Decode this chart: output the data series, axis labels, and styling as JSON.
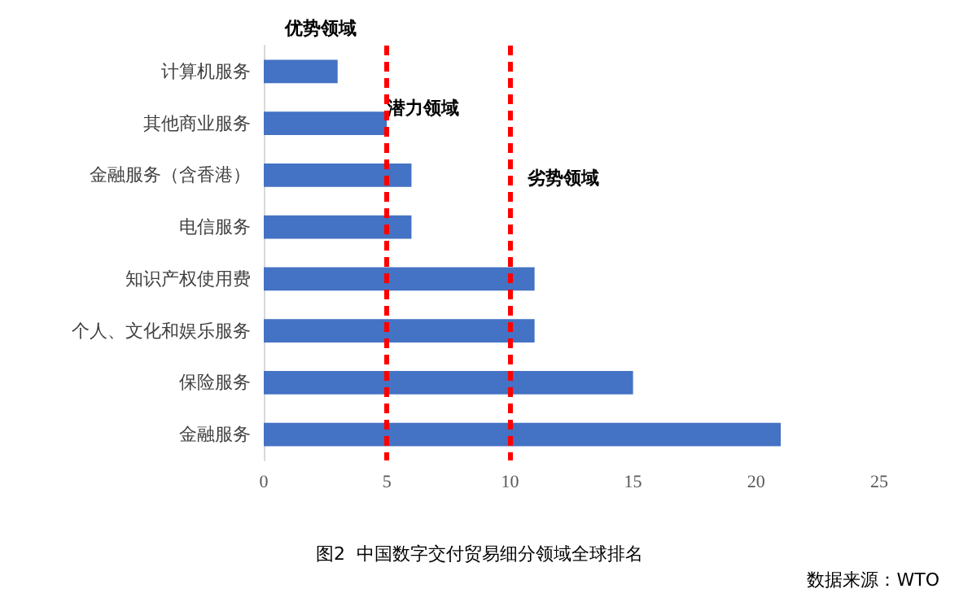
{
  "chart_data": {
    "type": "bar",
    "orientation": "horizontal",
    "title": "图2  中国数字交付贸易细分领域全球排名",
    "categories": [
      "计算机服务",
      "其他商业服务",
      "金融服务（含香港）",
      "电信服务",
      "知识产权使用费",
      "个人、文化和娱乐服务",
      "保险服务",
      "金融服务"
    ],
    "values": [
      3,
      5,
      6,
      6,
      11,
      11,
      15,
      21
    ],
    "color": "#4472c4",
    "xlim": [
      0,
      25
    ],
    "xticks": [
      0,
      5,
      10,
      15,
      20,
      25
    ],
    "grid": false,
    "ref_lines": [
      {
        "axis": "x",
        "value": 5,
        "color": "#ff0000",
        "line_style": "dashed"
      },
      {
        "axis": "x",
        "value": 10,
        "color": "#ff0000",
        "line_style": "dashed"
      }
    ],
    "annotations": [
      "优势领域",
      "潜力领域",
      "劣势领域",
      "数据来源：WTO"
    ]
  }
}
